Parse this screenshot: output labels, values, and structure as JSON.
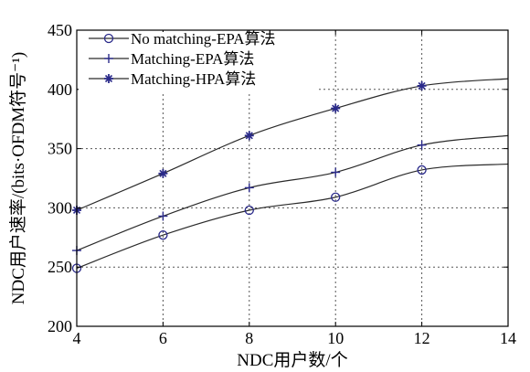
{
  "chart_data": {
    "type": "line",
    "title": "",
    "xlabel": "NDC用户数/个",
    "ylabel": "NDC用户速率/(bits·OFDM符号⁻¹)",
    "xlim": [
      4,
      14
    ],
    "ylim": [
      200,
      450
    ],
    "xticks": [
      4,
      6,
      8,
      10,
      12,
      14
    ],
    "yticks": [
      200,
      250,
      300,
      350,
      400,
      450
    ],
    "grid": true,
    "legend_position": "top-left",
    "series": [
      {
        "name": "No matching-EPA算法",
        "marker": "circle",
        "x": [
          4,
          6,
          8,
          10,
          12,
          14
        ],
        "y": [
          249,
          277,
          298,
          309,
          332,
          337
        ]
      },
      {
        "name": "Matching-EPA算法",
        "marker": "plus",
        "x": [
          4,
          6,
          8,
          10,
          12,
          14
        ],
        "y": [
          264,
          293,
          317,
          330,
          353,
          361
        ]
      },
      {
        "name": "Matching-HPA算法",
        "marker": "star",
        "x": [
          4,
          6,
          8,
          10,
          12,
          14
        ],
        "y": [
          298,
          329,
          361,
          384,
          403,
          409
        ]
      }
    ],
    "colors": {
      "line": "#2b2b2b",
      "marker": "#2a2a8a"
    }
  }
}
